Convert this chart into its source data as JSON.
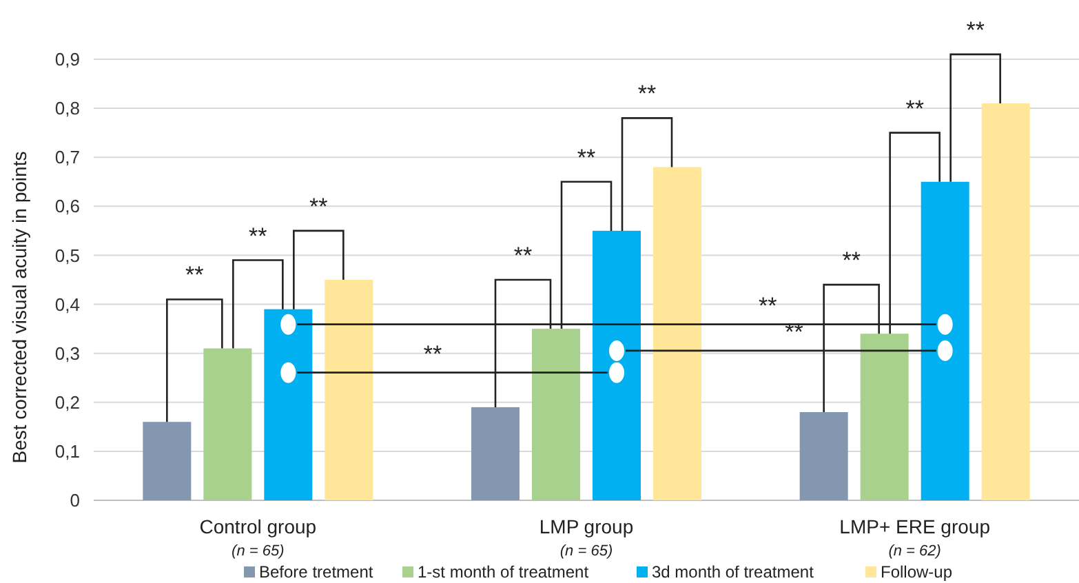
{
  "chart_data": {
    "type": "bar",
    "ylabel": "Best corrected visual acuity in points",
    "categories": [
      "Control group\n(n = 65)",
      "LMP group\n(n = 65)",
      "LMP+ ERE group\n(n = 62)"
    ],
    "series": [
      {
        "name": "Before tretment",
        "color": "#8497b0",
        "values": [
          0.16,
          0.19,
          0.18
        ]
      },
      {
        "name": "1-st month of treatment",
        "color": "#a9d18e",
        "values": [
          0.31,
          0.35,
          0.34
        ]
      },
      {
        "name": "3d month of treatment",
        "color": "#00b0f0",
        "values": [
          0.39,
          0.55,
          0.65
        ]
      },
      {
        "name": "Follow-up",
        "color": "#ffe699",
        "values": [
          0.45,
          0.68,
          0.81
        ]
      }
    ],
    "ylim": [
      0,
      0.9
    ],
    "yticks": [
      0,
      {
        "value": 0.1,
        "label": "0,1"
      },
      {
        "value": 0.2,
        "label": "0,2"
      },
      {
        "value": 0.3,
        "label": "0,3"
      },
      {
        "value": 0.4,
        "label": "0,4"
      },
      {
        "value": 0.5,
        "label": "0,5"
      },
      {
        "value": 0.6,
        "label": "0,6"
      },
      {
        "value": 0.7,
        "label": "0,7"
      },
      {
        "value": 0.8,
        "label": "0,8"
      },
      {
        "value": 0.9,
        "label": "0,9"
      }
    ],
    "grid": "y",
    "legend": "bottom",
    "annotations": [
      "**",
      "**",
      "**",
      "**",
      "**",
      "**",
      "**",
      "**",
      "**",
      "**",
      "**",
      "**"
    ]
  }
}
